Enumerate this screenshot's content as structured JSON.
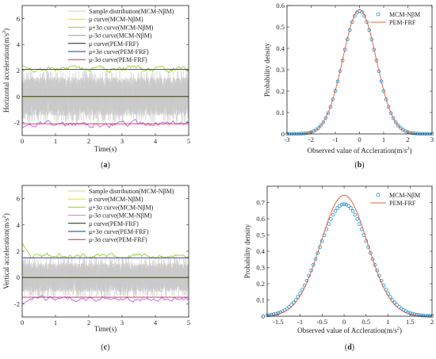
{
  "chart_data": [
    {
      "id": "a",
      "type": "line",
      "panel_label": "(a)",
      "xlabel": "Time(s)",
      "ylabel": "Horizontal acceleration(m/s",
      "ylabel_sup": "2",
      "ylabel_end": ")",
      "xlim": [
        0,
        5
      ],
      "ylim": [
        -3,
        7
      ],
      "xticks": [
        0,
        1,
        2,
        3,
        4,
        5
      ],
      "yticks": [
        -2,
        0,
        2,
        4,
        6
      ],
      "legend_position": "top-right",
      "legend": [
        {
          "label": "Sample distribution(MCM-NβM)",
          "color": "#d4d4a0"
        },
        {
          "label": "μ curve(MCM-NβM)",
          "color": "#e6e600"
        },
        {
          "label": "μ+3σ curve(MCM-NβM)",
          "color": "#9acd32"
        },
        {
          "label": "μ-3σ curve(MCM-NβM)",
          "color": "#c080d0"
        },
        {
          "label": "μ curve(PEM-FRF)",
          "color": "#1a1a1a"
        },
        {
          "label": "μ+3σ curve(PEM-FRF)",
          "color": "#1a2ad0"
        },
        {
          "label": "μ-3σ curve(PEM-FRF)",
          "color": "#e0204a"
        }
      ],
      "series": [
        {
          "role": "band",
          "color": "#c9c9c9",
          "upper": 1.5,
          "lower": -1.5,
          "spike_upper": 2.1,
          "spike_lower": -2.1
        },
        {
          "role": "mu-mcm",
          "color": "#e6e600",
          "value": 0.0,
          "noise": 0.02
        },
        {
          "role": "mu-pem",
          "color": "#1a1a1a",
          "value": 0.0,
          "noise": 0.0
        },
        {
          "role": "upper-mcm",
          "color": "#9acd32",
          "value": 2.1,
          "noise": 0.18,
          "start": 2.4
        },
        {
          "role": "lower-mcm",
          "color": "#c060e0",
          "value": -2.1,
          "noise": 0.18,
          "start": -2.4
        },
        {
          "role": "upper-pem",
          "color": "#1a2ad0",
          "value": 2.1,
          "noise": 0.0
        },
        {
          "role": "lower-pem",
          "color": "#e0204a",
          "value": -2.1,
          "noise": 0.0
        }
      ]
    },
    {
      "id": "b",
      "type": "line",
      "panel_label": "(b)",
      "xlabel": "Observed value of Accleration(m/s",
      "xlabel_sup": "2",
      "xlabel_end": ")",
      "ylabel": "Probability density",
      "xlim": [
        -3,
        3
      ],
      "ylim": [
        0,
        0.6
      ],
      "xticks": [
        -3,
        -2,
        -1,
        0,
        1,
        2,
        3
      ],
      "yticks": [
        0,
        0.1,
        0.2,
        0.3,
        0.4,
        0.5,
        0.6
      ],
      "legend_position": "top-right",
      "legend": [
        {
          "label": "MCM-NβM",
          "color": "#1f8fcf",
          "marker": "circle"
        },
        {
          "label": "PEM-FRF",
          "color": "#e8643c",
          "marker": "line"
        }
      ],
      "series": [
        {
          "name": "MCM-NβM",
          "kind": "scatter",
          "mean": 0.0,
          "sigma": 0.69,
          "peak": 0.575,
          "step": 0.1
        },
        {
          "name": "PEM-FRF",
          "kind": "curve",
          "mean": 0.0,
          "sigma": 0.69,
          "peak": 0.58
        }
      ]
    },
    {
      "id": "c",
      "type": "line",
      "panel_label": "(c)",
      "xlabel": "Time(s)",
      "ylabel": "Vertical acceleration(m/s",
      "ylabel_sup": "2",
      "ylabel_end": ")",
      "xlim": [
        0,
        5
      ],
      "ylim": [
        -3,
        7
      ],
      "xticks": [
        0,
        1,
        2,
        3,
        4,
        5
      ],
      "yticks": [
        -2,
        0,
        2,
        4,
        6
      ],
      "legend_position": "top-right",
      "legend": [
        {
          "label": "Sample distribution(MCM-NβM)",
          "color": "#d4d4a0"
        },
        {
          "label": "μ curve(MCM-NβM)",
          "color": "#e6e600"
        },
        {
          "label": "μ+3σ curve(MCM-NβM)",
          "color": "#9acd32"
        },
        {
          "label": "μ-3σ curve(MCM-NβM)",
          "color": "#c080d0"
        },
        {
          "label": "μ curve(PEM-FRF)",
          "color": "#1a1a1a"
        },
        {
          "label": "μ+3σ curve(PEM-FRF)",
          "color": "#1a2ad0"
        },
        {
          "label": "μ-3σ curve(PEM-FRF)",
          "color": "#e0204a"
        }
      ],
      "series": [
        {
          "role": "band",
          "color": "#c9c9c9",
          "upper": 1.1,
          "lower": -1.1,
          "spike_upper": 1.6,
          "spike_lower": -1.6
        },
        {
          "role": "mu-mcm",
          "color": "#e6e600",
          "value": 0.0,
          "noise": 0.02
        },
        {
          "role": "mu-pem",
          "color": "#1a1a1a",
          "value": 0.0,
          "noise": 0.0
        },
        {
          "role": "upper-mcm",
          "color": "#9acd32",
          "value": 1.65,
          "noise": 0.15,
          "start": 2.6
        },
        {
          "role": "lower-mcm",
          "color": "#c060e0",
          "value": -1.65,
          "noise": 0.15,
          "start": -2.0
        },
        {
          "role": "upper-pem",
          "color": "#1a2ad0",
          "value": 1.5,
          "noise": 0.0
        },
        {
          "role": "lower-pem",
          "color": "#e0204a",
          "value": -1.5,
          "noise": 0.0
        }
      ]
    },
    {
      "id": "d",
      "type": "line",
      "panel_label": "(d)",
      "xlabel": "Observed value of Accleration(m/s",
      "xlabel_sup": "2",
      "xlabel_end": ")",
      "ylabel": "Probability density",
      "xlim": [
        -1.75,
        2
      ],
      "ylim": [
        0,
        0.8
      ],
      "xticks": [
        -1.5,
        -1,
        -0.5,
        0,
        0.5,
        1,
        1.5,
        2
      ],
      "yticks": [
        0,
        0.1,
        0.2,
        0.3,
        0.4,
        0.5,
        0.6,
        0.7
      ],
      "legend_position": "top-right",
      "legend": [
        {
          "label": "MCM-NβM",
          "color": "#1f8fcf",
          "marker": "circle"
        },
        {
          "label": "PEM-FRF",
          "color": "#e8643c",
          "marker": "line"
        }
      ],
      "series": [
        {
          "name": "MCM-NβM",
          "kind": "scatter",
          "mean": 0.0,
          "sigma": 0.56,
          "peak": 0.69,
          "step": 0.05
        },
        {
          "name": "PEM-FRF",
          "kind": "curve",
          "mean": 0.0,
          "sigma": 0.53,
          "peak": 0.745
        }
      ]
    }
  ]
}
